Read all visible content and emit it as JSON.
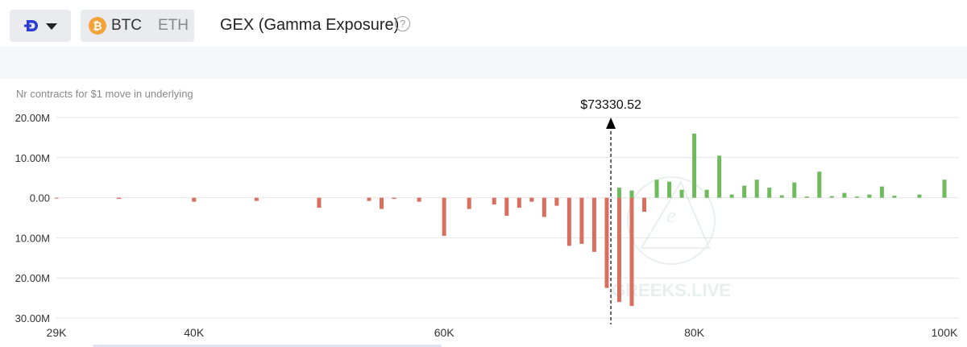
{
  "header": {
    "exchange_icon": "deribit-icon",
    "dropdown_icon": "caret-down-icon",
    "coins": [
      {
        "label": "BTC",
        "icon": "bitcoin-icon",
        "active": true
      },
      {
        "label": "ETH",
        "active": false
      }
    ],
    "title": "GEX (Gamma Exposure)",
    "help_icon": "question-icon"
  },
  "watermark": "GREEKS.LIVE",
  "chart_data": {
    "type": "bar",
    "ylabel": "Nr contracts for $1 move in underlying",
    "xlim": [
      29000,
      100000
    ],
    "ylim": [
      -30000000,
      20000000
    ],
    "x_ticks": [
      {
        "value": 29000,
        "label": "29K"
      },
      {
        "value": 40000,
        "label": "40K"
      },
      {
        "value": 60000,
        "label": "60K"
      },
      {
        "value": 80000,
        "label": "80K"
      },
      {
        "value": 100000,
        "label": "100K"
      }
    ],
    "y_ticks": [
      {
        "value": 20000000,
        "label": "20.00M"
      },
      {
        "value": 10000000,
        "label": "10.00M"
      },
      {
        "value": 0,
        "label": "0.00"
      },
      {
        "value": -10000000,
        "label": "10.00M"
      },
      {
        "value": -20000000,
        "label": "20.00M"
      },
      {
        "value": -30000000,
        "label": "30.00M"
      }
    ],
    "spot_price": {
      "value": 73330.52,
      "label": "$73330.52"
    },
    "colors": {
      "positive": "#6fba5c",
      "negative": "#d9705f",
      "grid": "#e6e6e6"
    },
    "grid": true,
    "legend": "none",
    "bars": [
      {
        "x": 29000,
        "y": -100000
      },
      {
        "x": 34000,
        "y": -300000
      },
      {
        "x": 40000,
        "y": -1000000
      },
      {
        "x": 45000,
        "y": -800000
      },
      {
        "x": 50000,
        "y": -2500000
      },
      {
        "x": 54000,
        "y": -800000
      },
      {
        "x": 55000,
        "y": -2800000
      },
      {
        "x": 56000,
        "y": -300000
      },
      {
        "x": 58000,
        "y": -1000000
      },
      {
        "x": 60000,
        "y": -9500000
      },
      {
        "x": 62000,
        "y": -2800000
      },
      {
        "x": 64000,
        "y": -1700000
      },
      {
        "x": 65000,
        "y": -4500000
      },
      {
        "x": 66000,
        "y": -2500000
      },
      {
        "x": 67000,
        "y": -1000000
      },
      {
        "x": 68000,
        "y": -4800000
      },
      {
        "x": 69000,
        "y": -2000000
      },
      {
        "x": 70000,
        "y": -12000000
      },
      {
        "x": 71000,
        "y": -11500000
      },
      {
        "x": 72000,
        "y": -13500000
      },
      {
        "x": 73000,
        "y": -22500000
      },
      {
        "x": 74000,
        "y": 2500000
      },
      {
        "x": 74000,
        "y": -26000000
      },
      {
        "x": 75000,
        "y": 1800000
      },
      {
        "x": 75000,
        "y": -27000000
      },
      {
        "x": 76000,
        "y": -3500000
      },
      {
        "x": 77000,
        "y": 4500000
      },
      {
        "x": 78000,
        "y": 4000000
      },
      {
        "x": 79000,
        "y": 2000000
      },
      {
        "x": 80000,
        "y": 16000000
      },
      {
        "x": 81000,
        "y": 2000000
      },
      {
        "x": 82000,
        "y": 10500000
      },
      {
        "x": 83000,
        "y": 800000
      },
      {
        "x": 84000,
        "y": 3000000
      },
      {
        "x": 85000,
        "y": 4500000
      },
      {
        "x": 86000,
        "y": 2500000
      },
      {
        "x": 87000,
        "y": 600000
      },
      {
        "x": 88000,
        "y": 3800000
      },
      {
        "x": 89000,
        "y": 300000
      },
      {
        "x": 90000,
        "y": 6500000
      },
      {
        "x": 91000,
        "y": 400000
      },
      {
        "x": 92000,
        "y": 1200000
      },
      {
        "x": 93000,
        "y": 300000
      },
      {
        "x": 94000,
        "y": 800000
      },
      {
        "x": 95000,
        "y": 2800000
      },
      {
        "x": 96000,
        "y": 500000
      },
      {
        "x": 98000,
        "y": 800000
      },
      {
        "x": 100000,
        "y": 4500000
      }
    ]
  }
}
